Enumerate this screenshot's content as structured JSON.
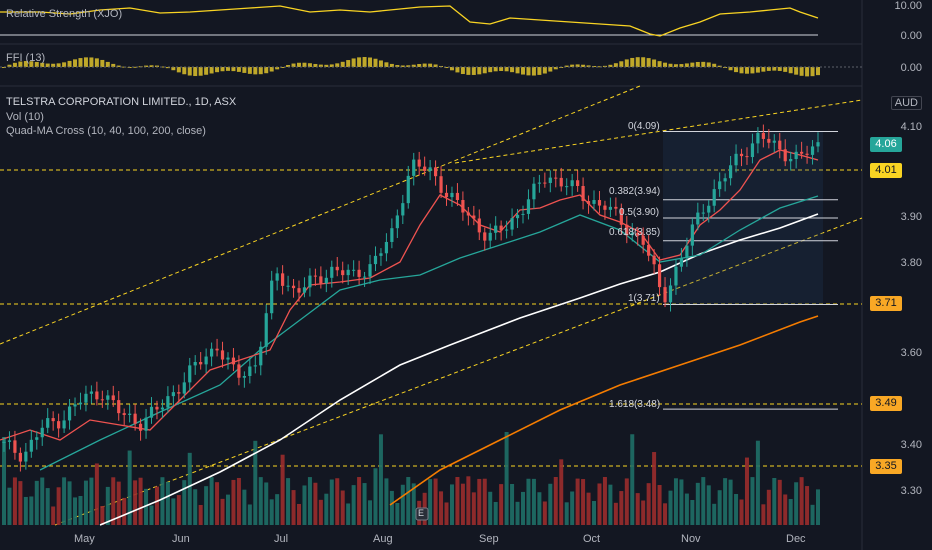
{
  "symbol_title": "TELSTRA CORPORATION LIMITED., 1D, ASX",
  "indicators": [
    "Vol (10)",
    "Quad-MA Cross (10, 40, 100, 200, close)"
  ],
  "rsi_panel": {
    "label": "Relative Strength (XJO)",
    "ticks": [
      "10.00",
      "0.00"
    ]
  },
  "ffi_panel": {
    "label": "FFI (13)",
    "tick": "0.00"
  },
  "currency": "AUD",
  "price_axis": [
    "4.10",
    "3.90",
    "3.80",
    "3.60",
    "3.40",
    "3.30"
  ],
  "price_tags": [
    {
      "text": "4.06",
      "color": "#26a69a"
    },
    {
      "text": "4.01",
      "color": "#f9d423"
    },
    {
      "text": "3.71",
      "color": "#f9a825"
    },
    {
      "text": "3.49",
      "color": "#f9a825"
    },
    {
      "text": "3.35",
      "color": "#f9a825"
    }
  ],
  "fib_levels": [
    {
      "label": "0(4.09)",
      "value": 4.09
    },
    {
      "label": "0.382(3.94)",
      "value": 3.94
    },
    {
      "label": "0.5(3.90)",
      "value": 3.9
    },
    {
      "label": "0.618(3.85)",
      "value": 3.85
    },
    {
      "label": "1(3.71)",
      "value": 3.71
    },
    {
      "label": "1.618(3.48)",
      "value": 3.48
    }
  ],
  "months": [
    "May",
    "Jun",
    "Jul",
    "Aug",
    "Sep",
    "Oct",
    "Nov",
    "Dec"
  ],
  "earnings_marker": "E",
  "colors": {
    "up": "#26a69a",
    "down": "#ef5350",
    "ma10": "#ef5350",
    "ma40": "#26a69a",
    "ma100": "#ffffff",
    "ma200": "#f57c00",
    "fib": "#f9d423"
  },
  "chart_data": {
    "type": "line",
    "price_range": [
      3.22,
      4.14
    ],
    "close_approx": [
      3.4,
      3.38,
      3.44,
      3.46,
      3.5,
      3.52,
      3.47,
      3.45,
      3.48,
      3.53,
      3.58,
      3.62,
      3.55,
      3.58,
      3.78,
      3.74,
      3.76,
      3.79,
      3.77,
      3.8,
      3.86,
      4.02,
      4.0,
      3.95,
      3.9,
      3.86,
      3.88,
      3.94,
      3.99,
      3.98,
      3.94,
      3.93,
      3.88,
      3.85,
      3.72,
      3.82,
      3.92,
      3.98,
      4.04,
      4.08,
      4.05,
      4.03,
      4.06
    ]
  }
}
